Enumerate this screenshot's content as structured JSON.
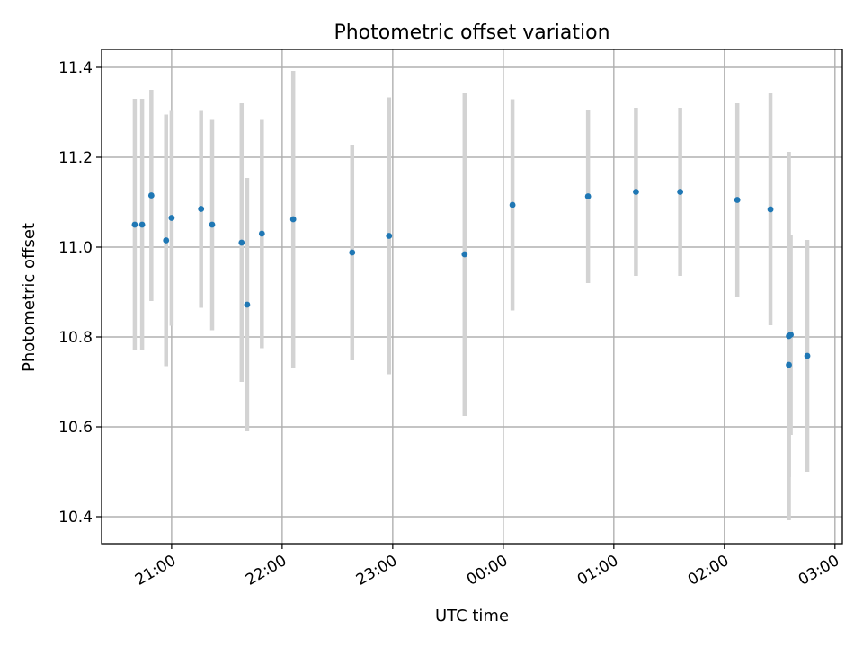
{
  "chart_data": {
    "type": "scatter",
    "title": "Photometric offset variation",
    "xlabel": "UTC time",
    "ylabel": "Photometric offset",
    "grid": true,
    "x_unit": "hours relative to 00:00 UTC",
    "xlim": [
      "20:22",
      "03:04"
    ],
    "ylim": [
      10.34,
      11.44
    ],
    "x_ticks": [
      "21:00",
      "22:00",
      "23:00",
      "00:00",
      "01:00",
      "02:00",
      "03:00"
    ],
    "y_ticks": [
      "10.4",
      "10.6",
      "10.8",
      "11.0",
      "11.2",
      "11.4"
    ],
    "colors": {
      "marker": "#1f77b4",
      "errorbar": "#d3d3d3"
    },
    "series": [
      {
        "points": [
          {
            "x": "20:40",
            "y": 11.05,
            "yerr": 0.28
          },
          {
            "x": "20:44",
            "y": 11.05,
            "yerr": 0.28
          },
          {
            "x": "20:49",
            "y": 11.115,
            "yerr": 0.235
          },
          {
            "x": "20:57",
            "y": 11.015,
            "yerr": 0.28
          },
          {
            "x": "21:00",
            "y": 11.065,
            "yerr": 0.24
          },
          {
            "x": "21:16",
            "y": 11.085,
            "yerr": 0.22
          },
          {
            "x": "21:22",
            "y": 11.05,
            "yerr": 0.235
          },
          {
            "x": "21:38",
            "y": 11.01,
            "yerr": 0.31
          },
          {
            "x": "21:41",
            "y": 10.872,
            "yerr": 0.282
          },
          {
            "x": "21:49",
            "y": 11.03,
            "yerr": 0.255
          },
          {
            "x": "22:06",
            "y": 11.062,
            "yerr": 0.33
          },
          {
            "x": "22:38",
            "y": 10.988,
            "yerr": 0.24
          },
          {
            "x": "22:58",
            "y": 11.025,
            "yerr": 0.308
          },
          {
            "x": "23:39",
            "y": 10.984,
            "yerr": 0.36
          },
          {
            "x": "00:05",
            "y": 11.094,
            "yerr": 0.235
          },
          {
            "x": "00:46",
            "y": 11.113,
            "yerr": 0.193
          },
          {
            "x": "01:12",
            "y": 11.123,
            "yerr": 0.187
          },
          {
            "x": "01:36",
            "y": 11.123,
            "yerr": 0.187
          },
          {
            "x": "02:07",
            "y": 11.105,
            "yerr": 0.215
          },
          {
            "x": "02:25",
            "y": 11.084,
            "yerr": 0.258
          },
          {
            "x": "02:35",
            "y": 10.802,
            "yerr": 0.41
          },
          {
            "x": "02:35",
            "y": 10.738,
            "yerr": 0.25
          },
          {
            "x": "02:36",
            "y": 10.805,
            "yerr": 0.223
          },
          {
            "x": "02:45",
            "y": 10.758,
            "yerr": 0.258
          }
        ]
      }
    ]
  }
}
